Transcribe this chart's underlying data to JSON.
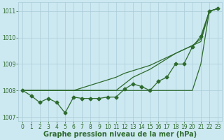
{
  "xlabel": "Graphe pression niveau de la mer (hPa)",
  "x": [
    0,
    1,
    2,
    3,
    4,
    5,
    6,
    7,
    8,
    9,
    10,
    11,
    12,
    13,
    14,
    15,
    16,
    17,
    18,
    19,
    20,
    21,
    22,
    23
  ],
  "line_main": [
    1008.0,
    1007.8,
    1007.55,
    1007.7,
    1007.55,
    1007.15,
    1007.75,
    1007.7,
    1007.7,
    1007.7,
    1007.75,
    1007.75,
    1008.05,
    1008.25,
    1008.15,
    1008.0,
    1008.35,
    1008.5,
    1009.0,
    1009.0,
    1009.65,
    1010.05,
    1011.0,
    1011.1
  ],
  "line_fan1": [
    1008.0,
    1008.0,
    1008.0,
    1008.0,
    1008.0,
    1008.0,
    1008.0,
    1008.0,
    1008.0,
    1008.0,
    1008.0,
    1008.0,
    1008.0,
    1008.0,
    1008.0,
    1008.0,
    1008.0,
    1008.0,
    1008.0,
    1008.0,
    1008.0,
    1009.0,
    1011.0,
    1011.1
  ],
  "line_fan2": [
    1008.0,
    1008.0,
    1008.0,
    1008.0,
    1008.0,
    1008.0,
    1008.0,
    1008.0,
    1008.0,
    1008.0,
    1008.0,
    1008.0,
    1008.25,
    1008.5,
    1008.65,
    1008.8,
    1009.0,
    1009.2,
    1009.4,
    1009.55,
    1009.7,
    1009.85,
    1011.0,
    1011.1
  ],
  "line_fan3": [
    1008.0,
    1008.0,
    1008.0,
    1008.0,
    1008.0,
    1008.0,
    1008.0,
    1008.1,
    1008.2,
    1008.3,
    1008.4,
    1008.5,
    1008.65,
    1008.75,
    1008.85,
    1008.95,
    1009.1,
    1009.25,
    1009.4,
    1009.55,
    1009.7,
    1009.95,
    1011.0,
    1011.1
  ],
  "ylim": [
    1006.85,
    1011.35
  ],
  "xlim": [
    -0.5,
    23.5
  ],
  "yticks": [
    1007,
    1008,
    1009,
    1010,
    1011
  ],
  "xticks": [
    0,
    1,
    2,
    3,
    4,
    5,
    6,
    7,
    8,
    9,
    10,
    11,
    12,
    13,
    14,
    15,
    16,
    17,
    18,
    19,
    20,
    21,
    22,
    23
  ],
  "bg_color": "#cce8f0",
  "line_color": "#2d6a2d",
  "grid_color": "#aaccd8",
  "tick_label_color": "#2d6a2d",
  "xlabel_color": "#2d6a2d",
  "xlabel_fontsize": 7.0,
  "tick_fontsize": 5.5,
  "marker": "D",
  "marker_size": 2.5,
  "linewidth": 0.9
}
